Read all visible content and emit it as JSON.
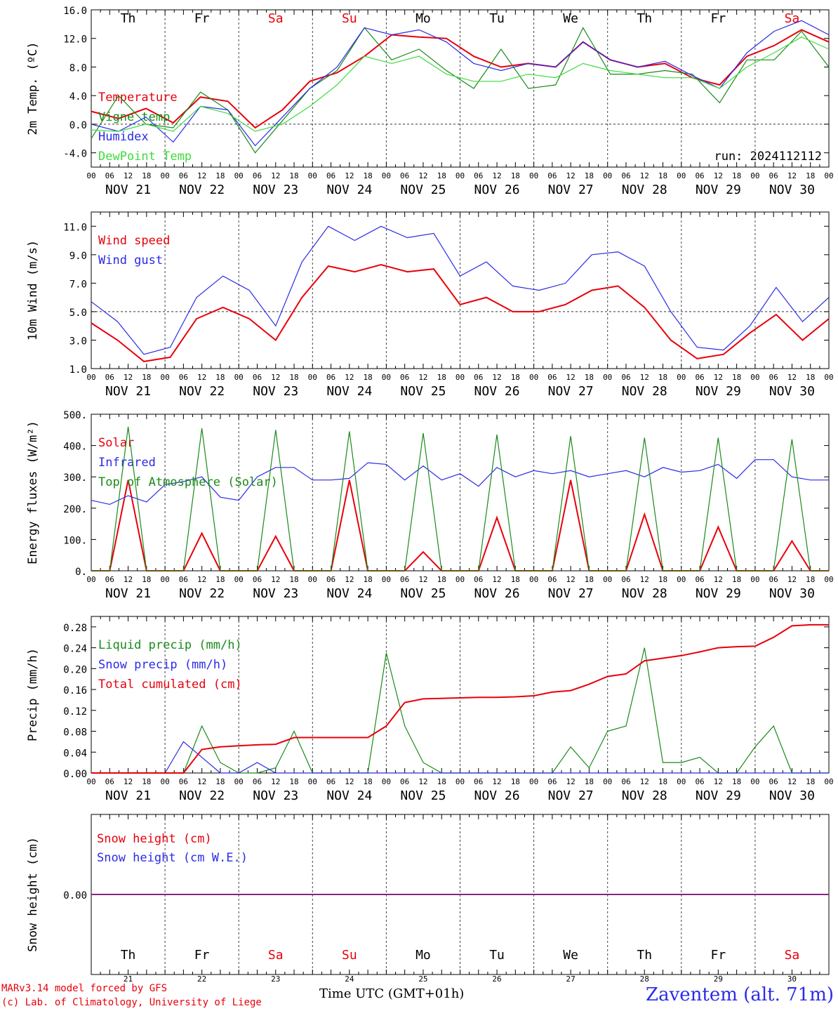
{
  "colors": {
    "red": "#e8000b",
    "green": "#1a8a1a",
    "blue": "#2b2be8",
    "lightgreen": "#3ddc3d",
    "purple": "#7a2a9a"
  },
  "dates": [
    "NOV 21",
    "NOV 22",
    "NOV 23",
    "NOV 24",
    "NOV 25",
    "NOV 26",
    "NOV 27",
    "NOV 28",
    "NOV 29",
    "NOV 30"
  ],
  "day_abbr": [
    "Th",
    "Fr",
    "Sa",
    "Su",
    "Mo",
    "Tu",
    "We",
    "Th",
    "Fr",
    "Sa"
  ],
  "weekend": [
    false,
    false,
    true,
    true,
    false,
    false,
    false,
    false,
    false,
    true
  ],
  "day_nums": [
    "21",
    "22",
    "23",
    "24",
    "25",
    "26",
    "27",
    "28",
    "29",
    "30"
  ],
  "hour_ticks": [
    "00",
    "06",
    "12",
    "18"
  ],
  "final_tick": "00",
  "footer": {
    "model": "MARv3.14 model forced by GFS",
    "lab": "(c) Lab. of Climatology, University of Liege",
    "xtitle": "Time UTC (GMT+01h)",
    "station": "Zaventem (alt. 71m)"
  },
  "chart_data": [
    {
      "type": "line",
      "ylabel": "2m Temp. (ºC)",
      "ylim": [
        -6,
        16
      ],
      "yticks": [
        "16.0",
        "12.0",
        "8.0",
        "4.0",
        "0.0",
        "-4.0"
      ],
      "ytick_values": [
        16,
        12,
        8,
        4,
        0,
        -4
      ],
      "run_label": "run: 2024112112",
      "refline": 0,
      "x_step_hours": 12,
      "series": [
        {
          "name": "Temperature",
          "color": "red",
          "values": [
            1.8,
            0.8,
            2.2,
            0.2,
            3.8,
            3.2,
            -0.5,
            2.0,
            6.0,
            7.2,
            9.5,
            12.5,
            12.2,
            12.0,
            9.5,
            8.0,
            8.5,
            8.0,
            11.5,
            9.0,
            8.0,
            8.5,
            6.5,
            5.5,
            9.5,
            11.0,
            13.2,
            11.5
          ]
        },
        {
          "name": "Vigne temp",
          "color": "green",
          "values": [
            -2.0,
            4.0,
            0.0,
            -0.5,
            4.5,
            2.0,
            -4.0,
            0.5,
            5.0,
            7.5,
            13.5,
            9.0,
            10.5,
            7.5,
            5.0,
            10.5,
            5.0,
            5.5,
            13.5,
            7.0,
            7.0,
            7.5,
            7.0,
            3.0,
            9.0,
            9.0,
            13.0,
            8.0
          ]
        },
        {
          "name": "Humidex",
          "color": "blue",
          "values": [
            0.0,
            -1.0,
            1.0,
            -2.5,
            2.5,
            2.0,
            -3.0,
            1.0,
            5.0,
            8.0,
            13.5,
            12.5,
            13.2,
            11.5,
            8.5,
            7.5,
            8.5,
            8.0,
            11.5,
            9.0,
            8.0,
            8.8,
            6.8,
            5.0,
            10.0,
            13.0,
            14.5,
            12.5
          ]
        },
        {
          "name": "DewPoint Temp",
          "color": "lightgreen",
          "values": [
            -0.8,
            -1.0,
            0.0,
            -1.0,
            2.5,
            1.5,
            -1.0,
            0.0,
            2.5,
            5.5,
            9.5,
            8.5,
            9.5,
            7.0,
            6.0,
            6.0,
            7.0,
            6.5,
            8.5,
            7.5,
            7.0,
            6.5,
            6.5,
            5.0,
            8.0,
            10.0,
            12.2,
            10.5
          ]
        }
      ]
    },
    {
      "type": "line",
      "ylabel": "10m Wind (m/s)",
      "ylim": [
        1,
        12
      ],
      "yticks": [
        "11.0",
        "9.0",
        "7.0",
        "5.0",
        "3.0",
        "1.0"
      ],
      "ytick_values": [
        11,
        9,
        7,
        5,
        3,
        1
      ],
      "refline": 5,
      "x_step_hours": 12,
      "series": [
        {
          "name": "Wind speed",
          "color": "red",
          "values": [
            4.2,
            3.0,
            1.5,
            1.8,
            4.5,
            5.3,
            4.5,
            3.0,
            6.0,
            8.2,
            7.8,
            8.3,
            7.8,
            8.0,
            5.5,
            6.0,
            5.0,
            5.0,
            5.5,
            6.5,
            6.8,
            5.3,
            3.0,
            1.7,
            2.0,
            3.5,
            4.8,
            3.0,
            4.5
          ]
        },
        {
          "name": "Wind gust",
          "color": "blue",
          "values": [
            5.7,
            4.3,
            2.0,
            2.5,
            6.0,
            7.5,
            6.5,
            4.0,
            8.5,
            11.0,
            10.0,
            11.0,
            10.2,
            10.5,
            7.5,
            8.5,
            6.8,
            6.5,
            7.0,
            9.0,
            9.2,
            8.2,
            5.0,
            2.5,
            2.3,
            4.0,
            6.7,
            4.3,
            6.0
          ]
        }
      ]
    },
    {
      "type": "line",
      "ylabel": "Energy fluxes (W/m²)",
      "ylim": [
        0,
        500
      ],
      "yticks": [
        "500.",
        "400.",
        "300.",
        "200.",
        "100.",
        "0."
      ],
      "ytick_values": [
        500,
        400,
        300,
        200,
        100,
        0
      ],
      "x_step_hours": 6,
      "series": [
        {
          "name": "Solar",
          "color": "red",
          "values": [
            0,
            0,
            290,
            0,
            0,
            0,
            120,
            0,
            0,
            0,
            110,
            0,
            0,
            0,
            290,
            0,
            0,
            0,
            60,
            0,
            0,
            0,
            170,
            0,
            0,
            0,
            290,
            0,
            0,
            0,
            180,
            0,
            0,
            0,
            140,
            0,
            0,
            0,
            95,
            0,
            0
          ]
        },
        {
          "name": "Infrared",
          "color": "blue",
          "values": [
            225,
            212,
            240,
            220,
            275,
            285,
            300,
            235,
            225,
            300,
            330,
            330,
            290,
            290,
            295,
            345,
            340,
            290,
            335,
            290,
            310,
            270,
            330,
            300,
            320,
            310,
            320,
            300,
            310,
            320,
            300,
            330,
            315,
            320,
            340,
            295,
            355,
            355,
            300,
            290,
            290
          ]
        },
        {
          "name": "Top of Atmosphere (Solar)",
          "color": "green",
          "values": [
            0,
            0,
            460,
            0,
            0,
            0,
            455,
            0,
            0,
            0,
            450,
            0,
            0,
            0,
            445,
            0,
            0,
            0,
            440,
            0,
            0,
            0,
            435,
            0,
            0,
            0,
            430,
            0,
            0,
            0,
            425,
            0,
            0,
            0,
            425,
            0,
            0,
            0,
            420,
            0,
            0
          ]
        }
      ]
    },
    {
      "type": "line",
      "ylabel": "Precip (mm/h)",
      "ylim": [
        0,
        0.3
      ],
      "yticks": [
        "0.28",
        "0.24",
        "0.20",
        "0.16",
        "0.12",
        "0.08",
        "0.04",
        "0.00"
      ],
      "ytick_values": [
        0.28,
        0.24,
        0.2,
        0.16,
        0.12,
        0.08,
        0.04,
        0
      ],
      "x_step_hours": 6,
      "series": [
        {
          "name": "Liquid precip (mm/h)",
          "color": "green",
          "values": [
            0,
            0,
            0,
            0,
            0,
            0,
            0.09,
            0.02,
            0,
            0,
            0.01,
            0.08,
            0,
            0,
            0,
            0,
            0.23,
            0.09,
            0.02,
            0,
            0,
            0,
            0,
            0,
            0,
            0,
            0.05,
            0.01,
            0.08,
            0.09,
            0.24,
            0.02,
            0.02,
            0.03,
            0,
            0,
            0.05,
            0.09,
            0,
            0,
            0
          ]
        },
        {
          "name": "Snow precip (mm/h)",
          "color": "blue",
          "values": [
            0,
            0,
            0,
            0,
            0,
            0.06,
            0.03,
            0,
            0,
            0.02,
            0,
            0,
            0,
            0,
            0,
            0,
            0,
            0,
            0,
            0,
            0,
            0,
            0,
            0,
            0,
            0,
            0,
            0,
            0,
            0,
            0,
            0,
            0,
            0,
            0,
            0,
            0,
            0,
            0,
            0,
            0
          ]
        },
        {
          "name": "Total cumulated (cm)",
          "color": "red",
          "values": [
            0,
            0,
            0,
            0,
            0,
            0,
            0.045,
            0.05,
            0.052,
            0.054,
            0.055,
            0.068,
            0.068,
            0.068,
            0.068,
            0.068,
            0.09,
            0.135,
            0.142,
            0.143,
            0.144,
            0.145,
            0.145,
            0.146,
            0.148,
            0.155,
            0.158,
            0.17,
            0.185,
            0.19,
            0.215,
            0.22,
            0.225,
            0.232,
            0.24,
            0.242,
            0.243,
            0.26,
            0.282,
            0.284,
            0.284
          ]
        }
      ]
    },
    {
      "type": "line",
      "ylabel": "Snow height (cm)",
      "ylim": [
        -1,
        1
      ],
      "yticks": [
        "0.00"
      ],
      "ytick_values": [
        0
      ],
      "x_step_hours": 12,
      "series": [
        {
          "name": "Snow height (cm)",
          "color": "red",
          "values": [
            0,
            0,
            0,
            0,
            0,
            0,
            0,
            0,
            0,
            0,
            0,
            0,
            0,
            0,
            0,
            0,
            0,
            0,
            0,
            0,
            0
          ]
        },
        {
          "name": "Snow height (cm W.E.)",
          "color": "blue",
          "values": [
            0,
            0,
            0,
            0,
            0,
            0,
            0,
            0,
            0,
            0,
            0,
            0,
            0,
            0,
            0,
            0,
            0,
            0,
            0,
            0,
            0
          ]
        }
      ]
    }
  ]
}
